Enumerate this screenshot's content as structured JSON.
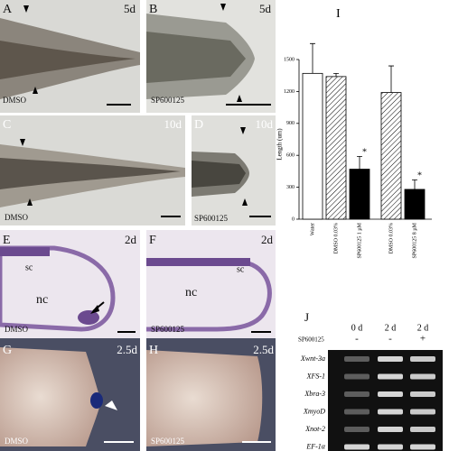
{
  "panels": [
    {
      "label": "A",
      "time": "5d",
      "treatment": "DMSO"
    },
    {
      "label": "B",
      "time": "5d",
      "treatment": "SP600125"
    },
    {
      "label": "C",
      "time": "10d",
      "treatment": "DMSO"
    },
    {
      "label": "D",
      "time": "10d",
      "treatment": "SP600125"
    },
    {
      "label": "E",
      "time": "2d",
      "treatment": "DMSO",
      "marks": [
        "sc",
        "nc"
      ]
    },
    {
      "label": "F",
      "time": "2d",
      "treatment": "SP600125",
      "marks": [
        "sc",
        "nc"
      ]
    },
    {
      "label": "G",
      "time": "2.5d",
      "treatment": "DMSO"
    },
    {
      "label": "H",
      "time": "2.5d",
      "treatment": "SP600125"
    }
  ],
  "chart_data": {
    "type": "bar",
    "title": "I",
    "ylabel": "Length (um)",
    "categories": [
      "Water",
      "DMSO 0.03%",
      "SP600125 1 µM",
      "DMSO 0.03%",
      "SP600125 8 µM"
    ],
    "values": [
      1370,
      1340,
      470,
      1190,
      280
    ],
    "errors": [
      280,
      30,
      120,
      250,
      90
    ],
    "fills": [
      "#ffffff",
      "hatch",
      "#000000",
      "hatch",
      "#000000"
    ],
    "significance": [
      null,
      null,
      "*",
      null,
      "*"
    ],
    "ylim": [
      0,
      1500
    ],
    "yticks": [
      0,
      300,
      600,
      900,
      1200,
      1500
    ]
  },
  "gel": {
    "label": "J",
    "days": [
      "0 d",
      "2 d",
      "2 d"
    ],
    "treatment": "SP600125",
    "signs": [
      "-",
      "-",
      "+"
    ],
    "genes": [
      "Xwnt-3a",
      "XFS-1",
      "Xbra-3",
      "XmyoD",
      "Xnot-2",
      "EF-1α"
    ]
  }
}
